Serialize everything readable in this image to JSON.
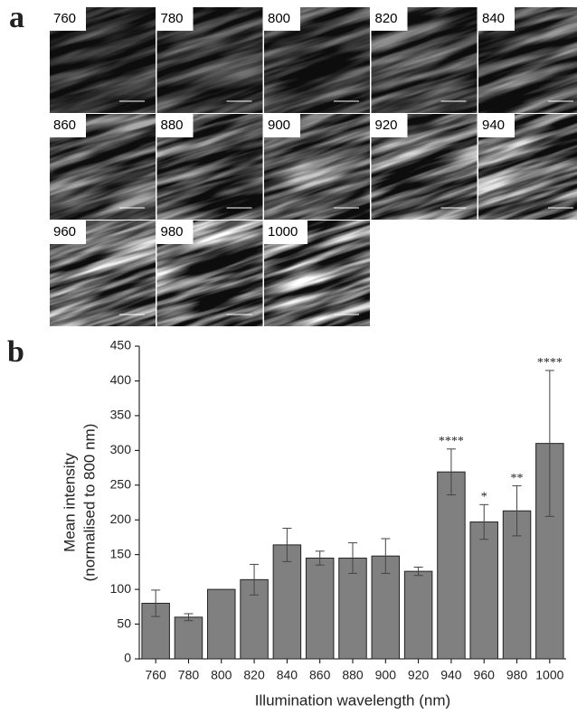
{
  "panel_a": {
    "label": "a",
    "images": [
      "760",
      "780",
      "800",
      "820",
      "840",
      "860",
      "880",
      "900",
      "920",
      "940",
      "960",
      "980",
      "1000"
    ]
  },
  "chart_data": {
    "type": "bar",
    "panel_label": "b",
    "categories": [
      "760",
      "780",
      "800",
      "820",
      "840",
      "860",
      "880",
      "900",
      "920",
      "940",
      "960",
      "980",
      "1000"
    ],
    "values": [
      80,
      60,
      100,
      114,
      164,
      145,
      145,
      148,
      126,
      269,
      197,
      213,
      310
    ],
    "errors": [
      19,
      5,
      null,
      22,
      24,
      10,
      22,
      25,
      6,
      33,
      25,
      36,
      105
    ],
    "significance": [
      null,
      null,
      null,
      null,
      null,
      null,
      null,
      null,
      null,
      "****",
      "*",
      "**",
      "****"
    ],
    "color": "#808080",
    "x_label": "Illumination wavelength (nm)",
    "y_label": [
      "Mean intensity",
      "(normalised to 800 nm)"
    ],
    "ylim": [
      0,
      450
    ],
    "yticks": [
      0,
      50,
      100,
      150,
      200,
      250,
      300,
      350,
      400,
      450
    ]
  }
}
